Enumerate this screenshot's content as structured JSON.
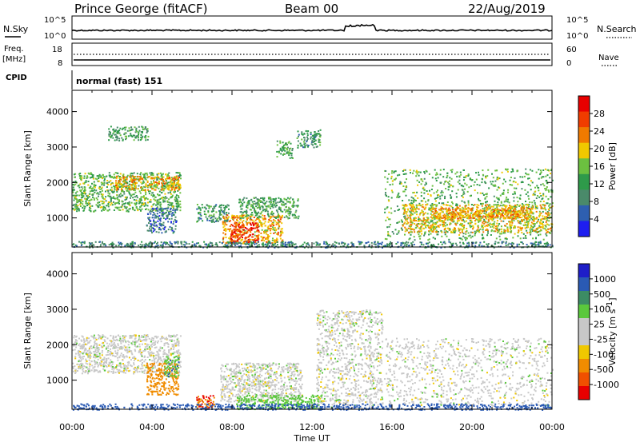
{
  "header": {
    "station": "Prince George (fitACF)",
    "beam": "Beam 00",
    "date": "22/Aug/2019"
  },
  "noise_panel": {
    "left_label": "N.Sky",
    "right_label": "N.Search",
    "left_ticks": [
      "10^5",
      "10^0"
    ],
    "right_ticks": [
      "10^5",
      "10^0"
    ]
  },
  "freq_panel": {
    "left_label_line1": "Freq.",
    "left_label_line2": "[MHz]",
    "right_label": "Nave",
    "left_ticks": [
      "18",
      "8"
    ],
    "right_ticks": [
      "60",
      "0"
    ],
    "freq_value_mhz": 10,
    "nave_value": 30
  },
  "cpid": {
    "label": "CPID",
    "mode": "normal (fast) 151"
  },
  "x_axis": {
    "title": "Time UT",
    "ticks": [
      "00:00",
      "04:00",
      "08:00",
      "12:00",
      "16:00",
      "20:00",
      "00:00"
    ],
    "range_hours": [
      0,
      24
    ]
  },
  "power_panel": {
    "ylabel": "Slant Range [km]",
    "yticks": [
      "4000",
      "3000",
      "2000",
      "1000"
    ],
    "ylim": [
      180,
      4600
    ],
    "colorbar_title": "Power [dB]",
    "colorbar_ticks": [
      "28",
      "24",
      "20",
      "16",
      "12",
      "8",
      "4"
    ],
    "colorbar_colors": [
      "#1e1ef0",
      "#2e5fb0",
      "#4a8a6a",
      "#2e9a4a",
      "#6cc040",
      "#f0c800",
      "#f07a00",
      "#f03c00",
      "#e80000"
    ]
  },
  "velocity_panel": {
    "ylabel": "Slant Range [km]",
    "yticks": [
      "4000",
      "3000",
      "2000",
      "1000"
    ],
    "ylim": [
      180,
      4600
    ],
    "colorbar_title": "Velocity [m s",
    "colorbar_title_exp": "-1",
    "colorbar_title_end": "]",
    "colorbar_ticks": [
      "1000",
      "500",
      "100",
      "25",
      "-25",
      "-100",
      "-500",
      "-1000"
    ],
    "colorbar_colors": [
      "#1e1ec8",
      "#2a5ab4",
      "#3c8c64",
      "#5ac83c",
      "#c8c8c8",
      "#c8c8c8",
      "#f0c800",
      "#f08c00",
      "#f05000",
      "#e80000"
    ]
  },
  "chart_data": {
    "type": "heatmap",
    "title": "Prince George (fitACF)",
    "xlabel": "Time UT",
    "ylabel": "Slant Range [km]",
    "xlim": [
      0,
      24
    ],
    "ylim": [
      180,
      4600
    ],
    "power_scatter_regions": [
      {
        "t": [
          0,
          5.4
        ],
        "r": [
          1200,
          2300
        ],
        "power_db": 14
      },
      {
        "t": [
          2,
          5.4
        ],
        "r": [
          1800,
          2200
        ],
        "power_db": 22
      },
      {
        "t": [
          1.8,
          3.8
        ],
        "r": [
          3200,
          3600
        ],
        "power_db": 12
      },
      {
        "t": [
          3.7,
          5.2
        ],
        "r": [
          600,
          1300
        ],
        "power_db": 6
      },
      {
        "t": [
          6.2,
          7.8
        ],
        "r": [
          900,
          1400
        ],
        "power_db": 10
      },
      {
        "t": [
          7.5,
          10.5
        ],
        "r": [
          300,
          1100
        ],
        "power_db": 22
      },
      {
        "t": [
          7.9,
          9.3
        ],
        "r": [
          300,
          900
        ],
        "power_db": 29
      },
      {
        "t": [
          8.3,
          11.3
        ],
        "r": [
          1000,
          1600
        ],
        "power_db": 12
      },
      {
        "t": [
          10.2,
          11
        ],
        "r": [
          2700,
          3200
        ],
        "power_db": 12
      },
      {
        "t": [
          11.2,
          12.4
        ],
        "r": [
          3000,
          3500
        ],
        "power_db": 10
      },
      {
        "t": [
          15.6,
          24
        ],
        "r": [
          400,
          2400
        ],
        "power_db": 14
      },
      {
        "t": [
          16.5,
          24
        ],
        "r": [
          600,
          1400
        ],
        "power_db": 20
      },
      {
        "t": [
          18,
          23
        ],
        "r": [
          1000,
          1300
        ],
        "power_db": 23
      },
      {
        "t": [
          0,
          24
        ],
        "r": [
          180,
          350
        ],
        "power_db": 8
      }
    ],
    "velocity_scatter_regions": [
      {
        "t": [
          0,
          5.4
        ],
        "r": [
          1200,
          2300
        ],
        "velocity_ms": 0
      },
      {
        "t": [
          3.7,
          5.3
        ],
        "r": [
          600,
          1500
        ],
        "velocity_ms": -200
      },
      {
        "t": [
          4.6,
          5.3
        ],
        "r": [
          1100,
          1700
        ],
        "velocity_ms": 80
      },
      {
        "t": [
          6.2,
          7.1
        ],
        "r": [
          200,
          600
        ],
        "velocity_ms": -500
      },
      {
        "t": [
          7.4,
          11.5
        ],
        "r": [
          400,
          1500
        ],
        "velocity_ms": 0
      },
      {
        "t": [
          8.2,
          12.5
        ],
        "r": [
          200,
          600
        ],
        "velocity_ms": 60
      },
      {
        "t": [
          12.2,
          15.5
        ],
        "r": [
          200,
          3000
        ],
        "velocity_ms": 0
      },
      {
        "t": [
          15.6,
          24
        ],
        "r": [
          300,
          2200
        ],
        "velocity_ms": 0
      },
      {
        "t": [
          0,
          24
        ],
        "r": [
          180,
          350
        ],
        "velocity_ms": 150
      }
    ]
  }
}
